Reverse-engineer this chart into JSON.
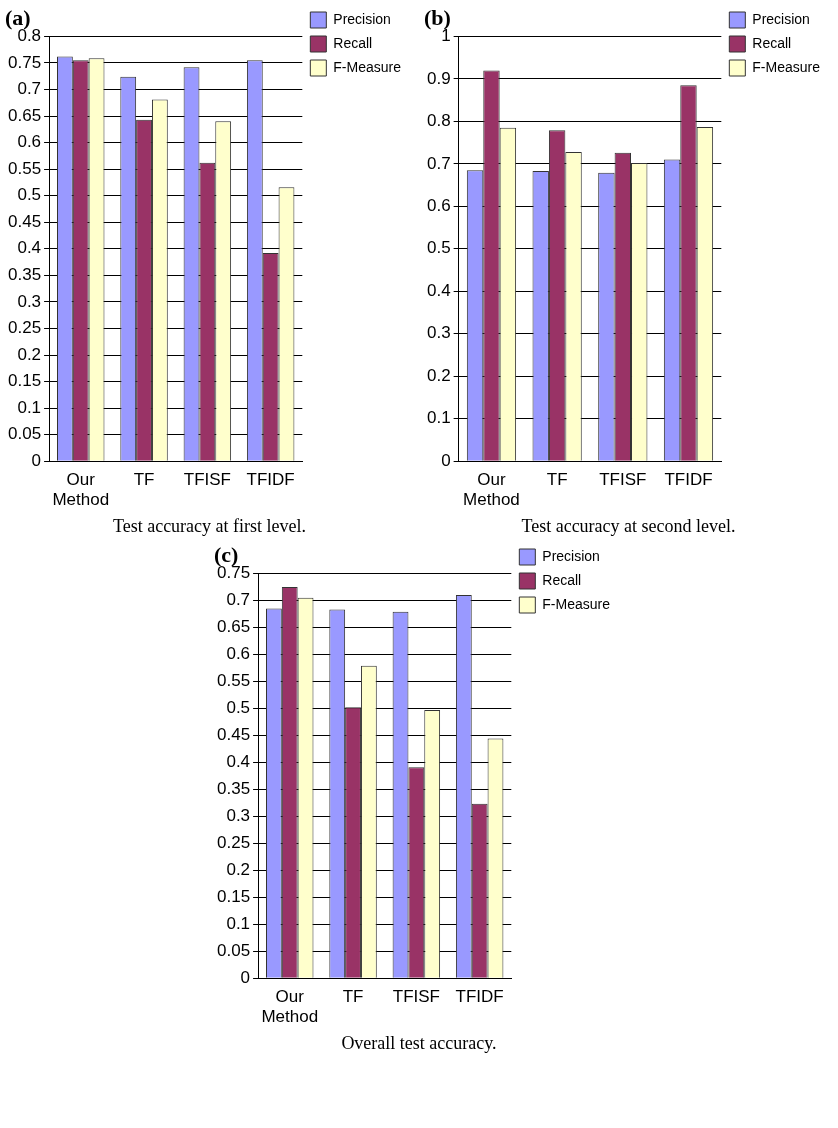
{
  "chart_data": [
    {
      "type": "bar",
      "title": "(a)",
      "categories": [
        "Our Method",
        "TF",
        "TFISF",
        "TFIDF"
      ],
      "series": [
        {
          "name": "Precision",
          "color": "#9999ff",
          "values": [
            0.762,
            0.724,
            0.742,
            0.755
          ]
        },
        {
          "name": "Recall",
          "color": "#993366",
          "values": [
            0.755,
            0.643,
            0.562,
            0.392
          ]
        },
        {
          "name": "F-Measure",
          "color": "#ffffcc",
          "values": [
            0.759,
            0.681,
            0.64,
            0.516
          ]
        }
      ],
      "ylim": [
        0,
        0.8
      ],
      "yticks": [
        0,
        0.05,
        0.1,
        0.15,
        0.2,
        0.25,
        0.3,
        0.35,
        0.4,
        0.45,
        0.5,
        0.55,
        0.6,
        0.65,
        0.7,
        0.75,
        0.8
      ],
      "grid": "y",
      "legend": "top right",
      "annotations": [
        "Test accuracy at first level."
      ]
    },
    {
      "type": "bar",
      "title": "(b)",
      "categories": [
        "Our Method",
        "TF",
        "TFISF",
        "TFIDF"
      ],
      "series": [
        {
          "name": "Precision",
          "color": "#9999ff",
          "values": [
            0.685,
            0.683,
            0.679,
            0.71
          ]
        },
        {
          "name": "Recall",
          "color": "#993366",
          "values": [
            0.92,
            0.779,
            0.726,
            0.885
          ]
        },
        {
          "name": "F-Measure",
          "color": "#ffffcc",
          "values": [
            0.785,
            0.728,
            0.702,
            0.787
          ]
        }
      ],
      "ylim": [
        0,
        1
      ],
      "yticks": [
        0,
        0.1,
        0.2,
        0.3,
        0.4,
        0.5,
        0.6,
        0.7,
        0.8,
        0.9,
        1
      ],
      "grid": "y",
      "legend": "top right",
      "annotations": [
        "Test accuracy at second level."
      ]
    },
    {
      "type": "bar",
      "title": "(c)",
      "categories": [
        "Our Method",
        "TF",
        "TFISF",
        "TFIDF"
      ],
      "series": [
        {
          "name": "Precision",
          "color": "#9999ff",
          "values": [
            0.685,
            0.683,
            0.679,
            0.71
          ]
        },
        {
          "name": "Recall",
          "color": "#993366",
          "values": [
            0.725,
            0.502,
            0.391,
            0.323
          ]
        },
        {
          "name": "F-Measure",
          "color": "#ffffcc",
          "values": [
            0.705,
            0.579,
            0.497,
            0.444
          ]
        }
      ],
      "ylim": [
        0,
        0.75
      ],
      "yticks": [
        0,
        0.05,
        0.1,
        0.15,
        0.2,
        0.25,
        0.3,
        0.35,
        0.4,
        0.45,
        0.5,
        0.55,
        0.6,
        0.65,
        0.7,
        0.75
      ],
      "grid": "y",
      "legend": "top right",
      "annotations": [
        "Overall test accuracy."
      ]
    }
  ]
}
